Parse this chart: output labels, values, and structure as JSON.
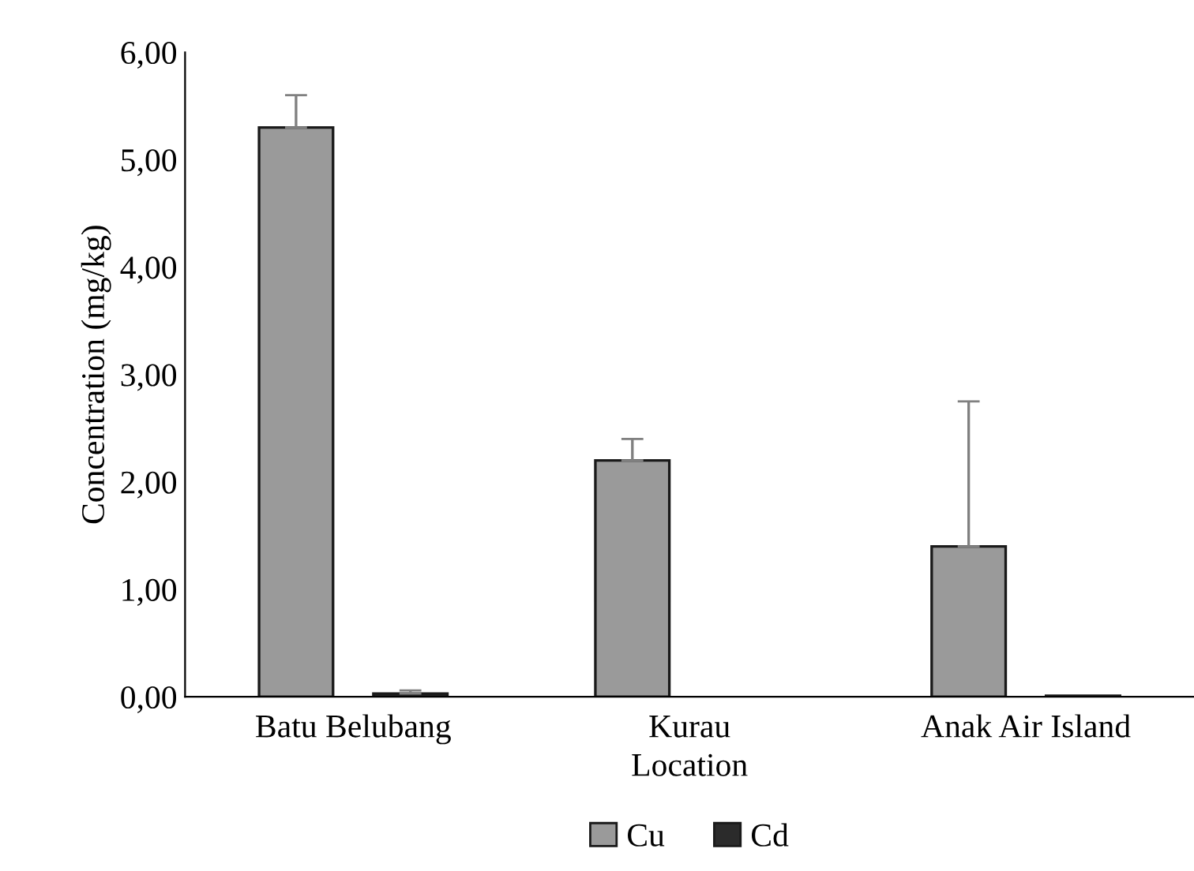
{
  "chart_data": {
    "type": "bar",
    "xlabel": "Location",
    "ylabel": "Concentration (mg/kg)",
    "categories": [
      "Batu Belubang",
      "Kurau",
      "Anak Air Island"
    ],
    "series": [
      {
        "name": "Cu",
        "color": "#9a9a9a",
        "values": [
          5.3,
          2.2,
          1.4
        ],
        "errors": [
          [
            5.3,
            5.6
          ],
          [
            2.2,
            2.4
          ],
          [
            1.4,
            2.75
          ]
        ]
      },
      {
        "name": "Cd",
        "color": "#2b2b2b",
        "values": [
          0.03,
          null,
          0.01
        ],
        "errors": [
          [
            0.03,
            0.06
          ],
          null,
          null
        ]
      }
    ],
    "ylim": [
      0,
      6
    ],
    "yticks": [
      {
        "value": 0,
        "label": "0,00"
      },
      {
        "value": 1,
        "label": "1,00"
      },
      {
        "value": 2,
        "label": "2,00"
      },
      {
        "value": 3,
        "label": "3,00"
      },
      {
        "value": 4,
        "label": "4,00"
      },
      {
        "value": 5,
        "label": "5,00"
      },
      {
        "value": 6,
        "label": "6,00"
      }
    ],
    "grid": false,
    "legend": "bottom"
  }
}
